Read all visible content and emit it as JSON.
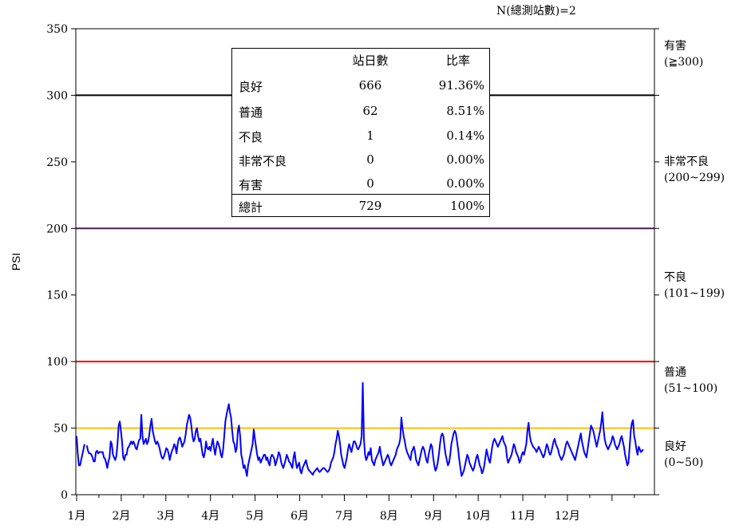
{
  "note": "N(總測站數)=2",
  "chart_data": {
    "type": "line",
    "ylabel": "PSI",
    "xlabel": "",
    "ylim": [
      0,
      350
    ],
    "yticks": [
      0,
      50,
      100,
      150,
      200,
      250,
      300,
      350
    ],
    "month_labels": [
      "1月",
      "2月",
      "3月",
      "4月",
      "5月",
      "6月",
      "7月",
      "8月",
      "9月",
      "10月",
      "11月",
      "12月"
    ],
    "threshold_lines": [
      {
        "value": 300,
        "color": "#000000"
      },
      {
        "value": 200,
        "color": "#4b1a5e"
      },
      {
        "value": 100,
        "color": "#ff0000"
      },
      {
        "value": 50,
        "color": "#ffc000"
      }
    ],
    "series_color": "#0000ff",
    "series": [
      {
        "values": [
          44,
          31,
          22,
          22,
          26,
          30,
          34,
          38,
          null,
          37,
          33,
          31,
          31,
          30,
          28,
          25,
          25,
          32,
          33,
          31,
          32,
          32,
          32,
          32,
          28,
          27,
          24,
          20,
          25,
          28,
          40,
          38,
          30,
          28,
          26,
          29,
          38,
          52,
          55,
          48,
          40,
          28,
          26,
          30,
          30,
          35,
          36,
          38,
          40,
          38,
          40,
          38,
          35,
          34,
          38,
          41,
          42,
          60,
          44,
          38,
          40,
          42,
          38,
          40,
          45,
          52,
          57,
          48,
          44,
          40,
          38,
          40,
          38,
          35,
          31,
          28,
          27,
          29,
          32,
          35,
          34,
          31,
          26,
          30,
          33,
          35,
          38,
          36,
          31,
          38,
          42,
          43,
          40,
          36,
          38,
          40,
          45,
          52,
          56,
          60,
          58,
          52,
          44,
          40,
          42,
          48,
          50,
          44,
          40,
          42,
          36,
          30,
          28,
          32,
          40,
          35,
          34,
          36,
          33,
          38,
          42,
          35,
          30,
          36,
          40,
          38,
          35,
          30,
          28,
          34,
          44,
          55,
          60,
          64,
          68,
          62,
          58,
          48,
          40,
          38,
          32,
          35,
          48,
          52,
          44,
          30,
          26,
          20,
          22,
          18,
          14,
          22,
          26,
          30,
          34,
          38,
          49,
          42,
          36,
          30,
          26,
          28,
          24,
          26,
          28,
          30,
          30,
          26,
          28,
          24,
          22,
          28,
          30,
          29,
          27,
          22,
          25,
          28,
          32,
          30,
          25,
          22,
          20,
          23,
          26,
          30,
          28,
          25,
          24,
          22,
          20,
          28,
          32,
          25,
          20,
          22,
          24,
          18,
          16,
          20,
          22,
          24,
          26,
          22,
          19,
          18,
          17,
          16,
          15,
          17,
          18,
          19,
          20,
          18,
          17,
          18,
          19,
          20,
          20,
          19,
          18,
          17,
          18,
          20,
          24,
          26,
          28,
          32,
          38,
          42,
          48,
          44,
          38,
          30,
          26,
          22,
          20,
          24,
          28,
          34,
          38,
          35,
          32,
          36,
          40,
          40,
          38,
          35,
          34,
          36,
          38,
          44,
          84,
          42,
          30,
          26,
          28,
          32,
          30,
          35,
          26,
          24,
          22,
          26,
          28,
          30,
          32,
          36,
          30,
          26,
          22,
          24,
          26,
          28,
          30,
          28,
          24,
          22,
          24,
          26,
          28,
          30,
          34,
          36,
          38,
          42,
          58,
          50,
          44,
          40,
          35,
          32,
          30,
          28,
          26,
          32,
          34,
          36,
          32,
          26,
          24,
          22,
          26,
          30,
          34,
          36,
          34,
          30,
          26,
          24,
          30,
          34,
          38,
          36,
          28,
          22,
          18,
          20,
          24,
          30,
          38,
          44,
          46,
          44,
          36,
          30,
          26,
          22,
          24,
          30,
          38,
          42,
          46,
          48,
          46,
          40,
          34,
          26,
          20,
          14,
          16,
          18,
          22,
          26,
          30,
          28,
          24,
          22,
          20,
          18,
          20,
          24,
          28,
          30,
          26,
          22,
          20,
          16,
          18,
          22,
          28,
          34,
          30,
          26,
          24,
          30,
          36,
          40,
          42,
          40,
          38,
          36,
          38,
          40,
          42,
          44,
          40,
          38,
          36,
          28,
          24,
          26,
          28,
          30,
          34,
          38,
          36,
          32,
          30,
          28,
          24,
          26,
          30,
          32,
          30,
          34,
          38,
          48,
          54,
          45,
          40,
          38,
          36,
          35,
          34,
          32,
          34,
          36,
          34,
          32,
          30,
          28,
          30,
          34,
          38,
          36,
          32,
          30,
          32,
          36,
          40,
          42,
          38,
          36,
          34,
          30,
          28,
          26,
          28,
          30,
          34,
          38,
          40,
          38,
          36,
          34,
          32,
          30,
          28,
          26,
          30,
          34,
          38,
          42,
          46,
          40,
          36,
          32,
          30,
          28,
          34,
          40,
          46,
          52,
          50,
          48,
          44,
          40,
          36,
          40,
          44,
          48,
          54,
          62,
          50,
          42,
          38,
          36,
          34,
          36,
          38,
          40,
          44,
          42,
          38,
          36,
          34,
          36,
          38,
          42,
          44,
          40,
          36,
          30,
          26,
          22,
          24,
          36,
          48,
          54,
          56,
          44,
          40,
          34,
          30,
          36,
          34,
          32,
          33,
          34
        ]
      }
    ],
    "table": {
      "headers": [
        "",
        "站日數",
        "比率"
      ],
      "rows": [
        [
          "良好",
          "666",
          "91.36%"
        ],
        [
          "普通",
          "62",
          "8.51%"
        ],
        [
          "不良",
          "1",
          "0.14%"
        ],
        [
          "非常不良",
          "0",
          "0.00%"
        ],
        [
          "有害",
          "0",
          "0.00%"
        ],
        [
          "總計",
          "729",
          "100%"
        ]
      ]
    },
    "category_labels": [
      {
        "name": "有害",
        "range": "(≧300)",
        "value": 315
      },
      {
        "name": "非常不良",
        "range": "(200~299)",
        "value": 250
      },
      {
        "name": "不良",
        "range": "(101~199)",
        "value": 150
      },
      {
        "name": "普通",
        "range": "(51~100)",
        "value": 75
      },
      {
        "name": "良好",
        "range": "(0~50)",
        "value": 25
      }
    ]
  }
}
